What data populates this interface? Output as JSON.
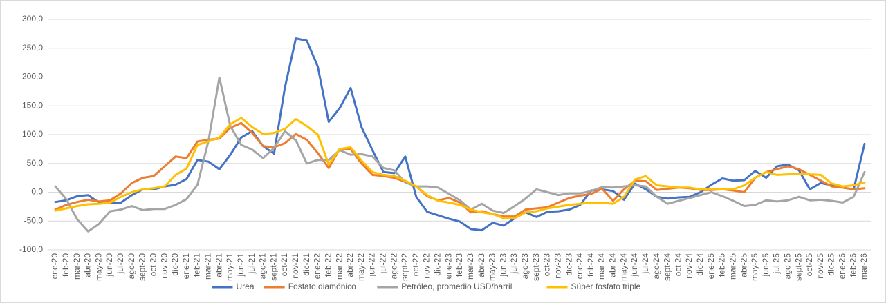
{
  "chart_data": {
    "type": "line",
    "categories": [
      "ene-20",
      "feb-20",
      "mar-20",
      "abr-20",
      "may-20",
      "jun-20",
      "jul-20",
      "ago-20",
      "sept-20",
      "oct-20",
      "nov-20",
      "dic-20",
      "ene-21",
      "feb-21",
      "mar-21",
      "abr-21",
      "may-21",
      "jun-21",
      "jul-21",
      "ago-21",
      "sept-21",
      "oct-21",
      "nov-21",
      "dic-21",
      "ene-22",
      "feb-22",
      "mar-22",
      "abr-22",
      "may-22",
      "jun-22",
      "jul-22",
      "ago-22",
      "sept-22",
      "oct-22",
      "nov-22",
      "dic-22",
      "ene-23",
      "feb-23",
      "mar-23",
      "abr-23",
      "may-23",
      "jun-23",
      "jul-23",
      "ago-23",
      "sept-23",
      "oct-23",
      "nov-23",
      "dic-23",
      "ene-24",
      "feb-24",
      "mar-24",
      "abr-24",
      "may-24",
      "jun-24",
      "jul-24",
      "ago-24",
      "sept-24",
      "oct-24",
      "nov-24",
      "dic-24",
      "ene-25",
      "feb-25",
      "mar-25",
      "abr-25",
      "may-25",
      "jun-25",
      "jul-25",
      "ago-25",
      "sept-25",
      "oct-25",
      "nov-25",
      "dic-25",
      "ene-26",
      "feb-26",
      "mar-26"
    ],
    "series": [
      {
        "name": "Urea",
        "color": "#4472c4",
        "values": [
          -17,
          -14,
          -7,
          -5,
          -18,
          -18,
          -18,
          -5,
          5,
          5,
          10,
          13,
          23,
          56,
          53,
          40,
          65,
          95,
          106,
          80,
          67,
          182,
          267,
          263,
          218,
          122,
          146,
          181,
          113,
          73,
          35,
          33,
          62,
          -8,
          -34,
          -40,
          -46,
          -51,
          -64,
          -66,
          -53,
          -58,
          -45,
          -35,
          -43,
          -34,
          -33,
          -30,
          -22,
          3,
          5,
          2,
          -13,
          15,
          5,
          -8,
          -11,
          -9,
          -8,
          0,
          13,
          24,
          20,
          21,
          37,
          25,
          45,
          48,
          38,
          5,
          16,
          12,
          8,
          5,
          84
        ]
      },
      {
        "name": "Fosfato diamónico",
        "color": "#ed7d31",
        "values": [
          -30,
          -22,
          -17,
          -13,
          -16,
          -14,
          -2,
          16,
          25,
          28,
          45,
          62,
          59,
          88,
          91,
          93,
          112,
          120,
          103,
          80,
          78,
          85,
          101,
          91,
          68,
          42,
          75,
          75,
          50,
          30,
          28,
          25,
          18,
          10,
          -7,
          -14,
          -10,
          -18,
          -35,
          -33,
          -38,
          -42,
          -42,
          -30,
          -28,
          -26,
          -18,
          -10,
          -6,
          -3,
          6,
          -15,
          5,
          20,
          19,
          4,
          6,
          8,
          7,
          4,
          4,
          5,
          3,
          0,
          25,
          35,
          40,
          45,
          40,
          30,
          20,
          10,
          8,
          5,
          7
        ]
      },
      {
        "name": "Petróleo, promedio USD/barril",
        "color": "#a5a5a5",
        "values": [
          10,
          -12,
          -47,
          -68,
          -55,
          -33,
          -30,
          -24,
          -31,
          -29,
          -29,
          -22,
          -12,
          13,
          89,
          199,
          115,
          82,
          74,
          59,
          77,
          106,
          90,
          50,
          56,
          56,
          73,
          65,
          66,
          62,
          42,
          38,
          17,
          10,
          10,
          8,
          -3,
          -14,
          -30,
          -20,
          -32,
          -36,
          -24,
          -11,
          5,
          0,
          -5,
          -2,
          -2,
          2,
          9,
          8,
          10,
          12,
          10,
          -8,
          -20,
          -15,
          -10,
          -5,
          0,
          -7,
          -15,
          -24,
          -22,
          -14,
          -16,
          -14,
          -8,
          -14,
          -13,
          -15,
          -18,
          -8,
          35
        ]
      },
      {
        "name": "Súper fosfato triple",
        "color": "#ffc000",
        "values": [
          -32,
          -28,
          -24,
          -21,
          -20,
          -18,
          -8,
          0,
          5,
          7,
          10,
          30,
          41,
          82,
          88,
          95,
          118,
          129,
          113,
          101,
          103,
          110,
          127,
          115,
          100,
          48,
          75,
          78,
          55,
          35,
          30,
          28,
          20,
          10,
          -5,
          -15,
          -18,
          -22,
          -30,
          -35,
          -38,
          -45,
          -45,
          -35,
          -33,
          -28,
          -25,
          -22,
          -20,
          -18,
          -18,
          -20,
          -8,
          22,
          28,
          12,
          10,
          8,
          8,
          5,
          5,
          6,
          5,
          12,
          25,
          35,
          30,
          31,
          32,
          31,
          30,
          15,
          10,
          12,
          17
        ]
      }
    ],
    "ylim": [
      -100,
      300
    ],
    "yticks": [
      {
        "value": -100,
        "label": "-100,0"
      },
      {
        "value": -50,
        "label": "-50,0"
      },
      {
        "value": 0,
        "label": "0,0"
      },
      {
        "value": 50,
        "label": "50,0"
      },
      {
        "value": 100,
        "label": "100,0"
      },
      {
        "value": 150,
        "label": "150,0"
      },
      {
        "value": 200,
        "label": "200,0"
      },
      {
        "value": 250,
        "label": "250,0"
      },
      {
        "value": 300,
        "label": "300,0"
      }
    ],
    "grid": true,
    "legend": "bottom"
  }
}
